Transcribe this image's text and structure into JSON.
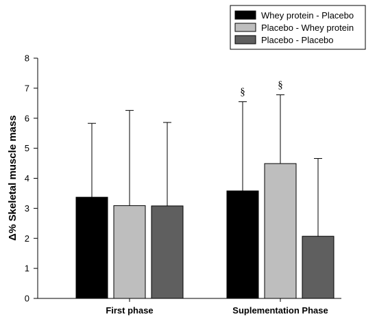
{
  "chart_data": {
    "type": "bar",
    "categories": [
      "First phase",
      "Suplementation Phase"
    ],
    "series": [
      {
        "name": "Whey protein - Placebo",
        "color": "#000000",
        "values": [
          3.37,
          3.58
        ],
        "errors": [
          2.46,
          2.97
        ]
      },
      {
        "name": "Placebo - Whey protein",
        "color": "#bebebe",
        "values": [
          3.09,
          4.49
        ],
        "errors": [
          3.17,
          2.29
        ]
      },
      {
        "name": "Placebo - Placebo",
        "color": "#5f5f5f",
        "values": [
          3.08,
          2.07
        ],
        "errors": [
          2.78,
          2.59
        ]
      }
    ],
    "annotations": [
      {
        "series": 0,
        "category": 1,
        "text": "§"
      },
      {
        "series": 1,
        "category": 1,
        "text": "§"
      }
    ],
    "xlabel": "",
    "ylabel": "Δ% Skeletal muscle mass",
    "ylim": [
      0,
      8
    ],
    "yticks": [
      0,
      1,
      2,
      3,
      4,
      5,
      6,
      7,
      8
    ],
    "grid": false,
    "legend_position": "top-right",
    "error_bars": "upper"
  }
}
